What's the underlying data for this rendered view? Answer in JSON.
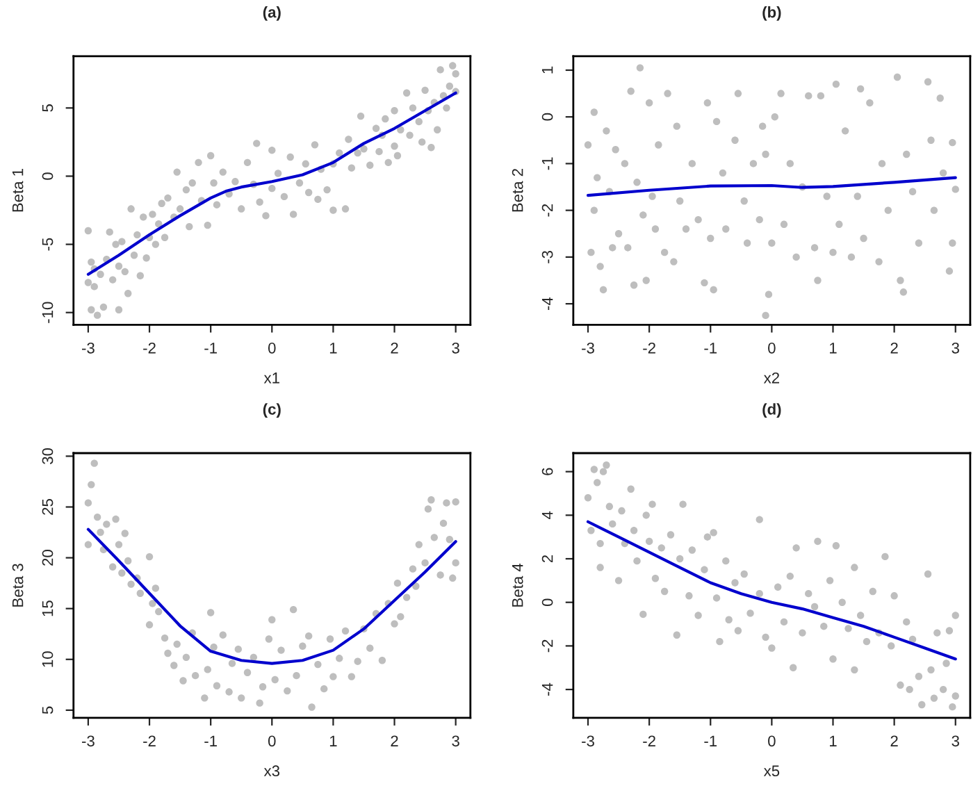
{
  "chart_data": [
    {
      "type": "scatter",
      "title": "(a)",
      "xlabel": "x1",
      "ylabel": "Beta 1",
      "xlim": [
        -3.24,
        3.24
      ],
      "ylim": [
        -10.9,
        8.8
      ],
      "xticks": [
        -3,
        -2,
        -1,
        0,
        1,
        2,
        3
      ],
      "yticks": [
        -10,
        -5,
        0,
        5
      ],
      "series": [
        {
          "type": "scatter",
          "color": "#bebebe",
          "x": [
            -3,
            -3,
            -2.95,
            -2.95,
            -2.9,
            -2.9,
            -2.85,
            -2.8,
            -2.75,
            -2.7,
            -2.65,
            -2.6,
            -2.55,
            -2.5,
            -2.5,
            -2.45,
            -2.4,
            -2.35,
            -2.3,
            -2.25,
            -2.2,
            -2.15,
            -2.1,
            -2.05,
            -2.0,
            -1.95,
            -1.9,
            -1.85,
            -1.8,
            -1.75,
            -1.7,
            -1.6,
            -1.55,
            -1.5,
            -1.4,
            -1.35,
            -1.3,
            -1.2,
            -1.15,
            -1.05,
            -1.0,
            -0.95,
            -0.9,
            -0.8,
            -0.7,
            -0.6,
            -0.5,
            -0.4,
            -0.3,
            -0.25,
            -0.2,
            -0.1,
            0,
            0,
            0.1,
            0.2,
            0.3,
            0.35,
            0.45,
            0.55,
            0.6,
            0.7,
            0.75,
            0.8,
            0.9,
            1.0,
            1.0,
            1.1,
            1.2,
            1.25,
            1.3,
            1.4,
            1.45,
            1.5,
            1.6,
            1.7,
            1.75,
            1.8,
            1.85,
            1.9,
            2.0,
            2.0,
            2.05,
            2.1,
            2.2,
            2.25,
            2.3,
            2.4,
            2.45,
            2.5,
            2.55,
            2.6,
            2.65,
            2.7,
            2.75,
            2.8,
            2.85,
            2.9,
            2.95,
            3.0,
            3.0
          ],
          "values": [
            -4,
            -7.8,
            -6.3,
            -9.8,
            -6.8,
            -8.1,
            -10.2,
            -7.2,
            -9.6,
            -6.1,
            -4.1,
            -7.6,
            -5.0,
            -9.8,
            -6.6,
            -4.8,
            -7.0,
            -8.6,
            -2.4,
            -5.8,
            -4.3,
            -7.3,
            -3.0,
            -6.0,
            -4.5,
            -2.8,
            -5.0,
            -3.5,
            -2.0,
            -4.5,
            -1.6,
            -3.0,
            0.3,
            -2.4,
            -1.0,
            -3.7,
            -0.5,
            1.0,
            -1.8,
            -3.6,
            1.5,
            -0.5,
            -2.1,
            0.3,
            -1.3,
            -0.4,
            -2.4,
            1.0,
            -0.6,
            2.4,
            -1.9,
            -2.9,
            1.9,
            -0.9,
            0.2,
            -1.5,
            1.4,
            -2.8,
            -0.5,
            0.9,
            -1.2,
            2.3,
            -1.7,
            0.5,
            -1.0,
            0.9,
            -2.5,
            1.7,
            -2.4,
            2.7,
            0.6,
            1.7,
            4.4,
            2.0,
            0.8,
            3.5,
            1.8,
            3.0,
            4.2,
            1.0,
            4.8,
            2.2,
            1.5,
            3.4,
            6.1,
            3.0,
            5.0,
            4.0,
            2.5,
            6.3,
            4.8,
            2.1,
            5.4,
            3.4,
            7.8,
            5.9,
            5.0,
            6.6,
            8.1,
            7.5,
            6.2
          ]
        },
        {
          "type": "line",
          "color": "#0000cd",
          "x": [
            -3,
            -2.5,
            -2,
            -1.5,
            -1,
            -0.75,
            -0.5,
            0,
            0.5,
            1,
            1.5,
            2,
            2.5,
            3
          ],
          "values": [
            -7.2,
            -5.8,
            -4.3,
            -2.9,
            -1.6,
            -1.1,
            -0.8,
            -0.4,
            0.1,
            1.0,
            2.4,
            3.5,
            4.8,
            6.1
          ]
        }
      ]
    },
    {
      "type": "scatter",
      "title": "(b)",
      "xlabel": "x2",
      "ylabel": "Beta 2",
      "xlim": [
        -3.24,
        3.24
      ],
      "ylim": [
        -4.45,
        1.3
      ],
      "xticks": [
        -3,
        -2,
        -1,
        0,
        1,
        2,
        3
      ],
      "yticks": [
        -4,
        -3,
        -2,
        -1,
        0,
        1
      ],
      "series": [
        {
          "type": "scatter",
          "color": "#bebebe",
          "x": [
            -3.0,
            -2.95,
            -2.9,
            -2.9,
            -2.85,
            -2.8,
            -2.75,
            -2.7,
            -2.65,
            -2.6,
            -2.55,
            -2.5,
            -2.4,
            -2.35,
            -2.3,
            -2.25,
            -2.2,
            -2.15,
            -2.1,
            -2.05,
            -2.0,
            -1.95,
            -1.9,
            -1.85,
            -1.75,
            -1.7,
            -1.6,
            -1.55,
            -1.5,
            -1.4,
            -1.3,
            -1.2,
            -1.1,
            -1.05,
            -1.0,
            -0.95,
            -0.9,
            -0.8,
            -0.75,
            -0.6,
            -0.55,
            -0.45,
            -0.4,
            -0.3,
            -0.2,
            -0.15,
            -0.1,
            -0.05,
            -0.1,
            0.0,
            0.05,
            0.15,
            0.2,
            0.3,
            0.4,
            0.5,
            0.6,
            0.7,
            0.75,
            0.8,
            0.9,
            1.0,
            1.05,
            1.1,
            1.2,
            1.3,
            1.4,
            1.45,
            1.5,
            1.6,
            1.75,
            1.8,
            1.9,
            2.05,
            2.1,
            2.15,
            2.2,
            2.3,
            2.4,
            2.55,
            2.6,
            2.65,
            2.75,
            2.8,
            2.9,
            2.95,
            3.0,
            2.95
          ],
          "values": [
            -0.6,
            -2.9,
            0.1,
            -2.0,
            -1.3,
            -3.2,
            -3.7,
            -0.3,
            -1.6,
            -2.8,
            -0.7,
            -2.5,
            -1.0,
            -2.8,
            0.55,
            -3.6,
            -1.4,
            1.05,
            -2.1,
            -3.5,
            0.3,
            -1.7,
            -2.4,
            -0.6,
            -2.9,
            0.5,
            -3.1,
            -0.2,
            -1.8,
            -2.4,
            -1.0,
            -2.2,
            -3.55,
            0.3,
            -2.6,
            -3.7,
            -0.1,
            -1.2,
            -2.4,
            -0.5,
            0.5,
            -1.8,
            -2.7,
            -1.0,
            -2.2,
            -0.2,
            -0.8,
            -3.8,
            -4.25,
            -2.7,
            0.0,
            0.5,
            -2.3,
            -1.0,
            -3.0,
            -1.5,
            0.45,
            -2.8,
            -3.5,
            0.45,
            -1.7,
            -2.9,
            0.7,
            -2.3,
            -0.3,
            -3.0,
            -1.7,
            0.6,
            -2.6,
            0.3,
            -3.1,
            -1.0,
            -2.0,
            0.85,
            -3.5,
            -3.75,
            -0.8,
            -1.6,
            -2.7,
            0.75,
            -0.5,
            -2.0,
            0.4,
            -1.2,
            -3.3,
            -2.7,
            -1.55,
            -0.55
          ]
        },
        {
          "type": "line",
          "color": "#0000cd",
          "x": [
            -3,
            -2,
            -1,
            0,
            0.5,
            1,
            2,
            3
          ],
          "values": [
            -1.68,
            -1.57,
            -1.48,
            -1.47,
            -1.51,
            -1.49,
            -1.4,
            -1.3
          ]
        }
      ]
    },
    {
      "type": "scatter",
      "title": "(c)",
      "xlabel": "x3",
      "ylabel": "Beta 3",
      "xlim": [
        -3.24,
        3.24
      ],
      "ylim": [
        4.25,
        30.3
      ],
      "xticks": [
        -3,
        -2,
        -1,
        0,
        1,
        2,
        3
      ],
      "yticks": [
        5,
        10,
        15,
        20,
        25,
        30
      ],
      "series": [
        {
          "type": "scatter",
          "color": "#bebebe",
          "x": [
            -3,
            -2.95,
            -3,
            -2.9,
            -2.85,
            -2.8,
            -2.75,
            -2.7,
            -2.6,
            -2.55,
            -2.5,
            -2.45,
            -2.4,
            -2.35,
            -2.3,
            -2.2,
            -2.15,
            -2.0,
            -2.0,
            -1.95,
            -1.9,
            -1.85,
            -1.75,
            -1.7,
            -1.6,
            -1.55,
            -1.45,
            -1.4,
            -1.3,
            -1.25,
            -1.1,
            -1.05,
            -1.0,
            -0.95,
            -0.9,
            -0.8,
            -0.7,
            -0.65,
            -0.55,
            -0.5,
            -0.4,
            -0.3,
            -0.2,
            -0.15,
            -0.05,
            0,
            0.05,
            0.15,
            0.25,
            0.35,
            0.4,
            0.5,
            0.6,
            0.65,
            0.75,
            0.85,
            0.95,
            1.0,
            1.1,
            1.2,
            1.3,
            1.4,
            1.5,
            1.6,
            1.7,
            1.8,
            1.9,
            2.0,
            2.05,
            2.1,
            2.2,
            2.3,
            2.35,
            2.4,
            2.5,
            2.55,
            2.6,
            2.65,
            2.75,
            2.8,
            2.85,
            2.9,
            2.95,
            3.0,
            3.0
          ],
          "values": [
            25.4,
            27.2,
            21.3,
            29.3,
            24.0,
            22.5,
            20.8,
            23.3,
            19.1,
            23.8,
            21.3,
            18.5,
            22.4,
            19.7,
            17.4,
            18.0,
            16.5,
            20.1,
            13.4,
            15.5,
            17.0,
            14.7,
            12.1,
            10.6,
            9.4,
            11.5,
            7.9,
            10.2,
            12.6,
            8.4,
            6.2,
            9.0,
            14.6,
            11.2,
            7.4,
            12.4,
            6.8,
            9.6,
            11.0,
            6.2,
            8.7,
            10.2,
            5.7,
            7.3,
            12.0,
            13.9,
            8.0,
            10.9,
            6.9,
            14.9,
            8.4,
            11.3,
            12.3,
            5.3,
            9.5,
            7.1,
            12.0,
            8.3,
            10.1,
            12.8,
            8.3,
            9.8,
            13.0,
            11.1,
            14.5,
            9.9,
            15.5,
            13.5,
            17.5,
            14.2,
            16.1,
            18.9,
            17.2,
            21.3,
            19.5,
            24.8,
            25.7,
            22.0,
            18.3,
            23.4,
            25.4,
            21.8,
            18.0,
            25.5,
            19.5
          ]
        },
        {
          "type": "line",
          "color": "#0000cd",
          "x": [
            -3,
            -2.5,
            -2,
            -1.5,
            -1,
            -0.5,
            0,
            0.5,
            1,
            1.5,
            2,
            2.5,
            3
          ],
          "values": [
            22.8,
            19.7,
            16.5,
            13.3,
            10.8,
            9.9,
            9.6,
            9.9,
            10.9,
            13.0,
            15.8,
            18.6,
            21.6
          ]
        }
      ]
    },
    {
      "type": "scatter",
      "title": "(d)",
      "xlabel": "x5",
      "ylabel": "Beta 4",
      "xlim": [
        -3.24,
        3.24
      ],
      "ylim": [
        -5.3,
        6.85
      ],
      "xticks": [
        -3,
        -2,
        -1,
        0,
        1,
        2,
        3
      ],
      "yticks": [
        -4,
        -2,
        0,
        2,
        4,
        6
      ],
      "series": [
        {
          "type": "scatter",
          "color": "#bebebe",
          "x": [
            -3,
            -2.95,
            -2.9,
            -2.85,
            -2.8,
            -2.8,
            -2.75,
            -2.7,
            -2.65,
            -2.6,
            -2.5,
            -2.45,
            -2.4,
            -2.3,
            -2.25,
            -2.2,
            -2.1,
            -2.05,
            -2.0,
            -1.95,
            -1.9,
            -1.8,
            -1.75,
            -1.65,
            -1.55,
            -1.5,
            -1.45,
            -1.35,
            -1.3,
            -1.2,
            -1.1,
            -1.05,
            -0.95,
            -0.9,
            -0.85,
            -0.75,
            -0.7,
            -0.6,
            -0.55,
            -0.45,
            -0.35,
            -0.2,
            -0.2,
            -0.1,
            0,
            0.1,
            0.2,
            0.3,
            0.35,
            0.4,
            0.5,
            0.6,
            0.7,
            0.75,
            0.85,
            0.95,
            1.0,
            1.05,
            1.15,
            1.25,
            1.35,
            1.35,
            1.45,
            1.55,
            1.65,
            1.75,
            1.85,
            1.95,
            2.0,
            2.1,
            2.2,
            2.25,
            2.3,
            2.4,
            2.45,
            2.55,
            2.6,
            2.65,
            2.7,
            2.8,
            2.85,
            2.9,
            2.95,
            3.0,
            3.0
          ],
          "values": [
            4.8,
            3.3,
            6.1,
            5.5,
            1.6,
            2.7,
            6.0,
            6.3,
            4.4,
            3.6,
            1.0,
            4.2,
            2.7,
            5.2,
            3.3,
            1.9,
            -0.55,
            4.0,
            2.8,
            4.5,
            1.1,
            2.5,
            0.5,
            3.1,
            -1.5,
            2.0,
            4.5,
            0.3,
            2.4,
            -0.6,
            1.5,
            3.0,
            3.2,
            0.2,
            -1.8,
            1.9,
            -0.8,
            0.9,
            -1.3,
            1.3,
            -0.5,
            0.4,
            3.8,
            -1.6,
            -2.1,
            0.7,
            -0.9,
            1.2,
            -3.0,
            2.5,
            -1.4,
            0.4,
            -0.2,
            2.8,
            -1.1,
            1.0,
            -2.6,
            2.6,
            0.0,
            -1.2,
            1.6,
            -3.1,
            -0.6,
            -1.8,
            0.5,
            -1.4,
            2.1,
            -2.0,
            0.3,
            -3.8,
            -0.9,
            -4.0,
            -1.7,
            -3.4,
            -4.7,
            1.3,
            -3.1,
            -4.4,
            -1.4,
            -4.0,
            -2.8,
            -1.3,
            -4.8,
            -0.6,
            -4.3
          ]
        },
        {
          "type": "line",
          "color": "#0000cd",
          "x": [
            -3,
            -2.5,
            -2,
            -1.5,
            -1,
            -0.5,
            0,
            0.5,
            1,
            1.5,
            2,
            2.5,
            3
          ],
          "values": [
            3.7,
            3.0,
            2.3,
            1.6,
            0.9,
            0.4,
            0.0,
            -0.3,
            -0.7,
            -1.1,
            -1.6,
            -2.1,
            -2.6
          ]
        }
      ]
    }
  ]
}
